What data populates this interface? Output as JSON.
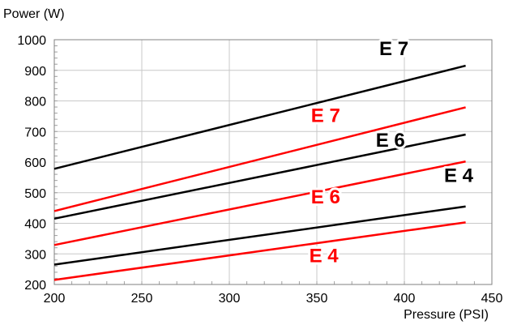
{
  "chart_data": {
    "type": "line",
    "xlabel": "Pressure (PSI)",
    "ylabel": "Power (W)",
    "xlim": [
      200,
      450
    ],
    "ylim": [
      200,
      1000
    ],
    "x_ticks": [
      200,
      250,
      300,
      350,
      400,
      450
    ],
    "y_ticks": [
      200,
      300,
      400,
      500,
      600,
      700,
      800,
      900,
      1000
    ],
    "grid": true,
    "legend": "none",
    "series": [
      {
        "name": "E 7",
        "color": "#000000",
        "x": [
          200,
          435
        ],
        "y": [
          578,
          915
        ]
      },
      {
        "name": "E 7",
        "color": "#ff0000",
        "x": [
          200,
          435
        ],
        "y": [
          440,
          779
        ]
      },
      {
        "name": "E 6",
        "color": "#000000",
        "x": [
          200,
          435
        ],
        "y": [
          415,
          690
        ]
      },
      {
        "name": "E 6",
        "color": "#ff0000",
        "x": [
          200,
          435
        ],
        "y": [
          329,
          602
        ]
      },
      {
        "name": "E 4",
        "color": "#000000",
        "x": [
          200,
          435
        ],
        "y": [
          265,
          455
        ]
      },
      {
        "name": "E 4",
        "color": "#ff0000",
        "x": [
          200,
          435
        ],
        "y": [
          215,
          403
        ]
      }
    ],
    "annotations": [
      {
        "text": "E 7",
        "color": "#000000",
        "x": 394,
        "y": 950
      },
      {
        "text": "E 7",
        "color": "#ff0000",
        "x": 355,
        "y": 731
      },
      {
        "text": "E 6",
        "color": "#000000",
        "x": 392,
        "y": 650
      },
      {
        "text": "E 6",
        "color": "#ff0000",
        "x": 355,
        "y": 465
      },
      {
        "text": "E 4",
        "color": "#000000",
        "x": 431,
        "y": 535
      },
      {
        "text": "E 4",
        "color": "#ff0000",
        "x": 354,
        "y": 273
      }
    ]
  }
}
